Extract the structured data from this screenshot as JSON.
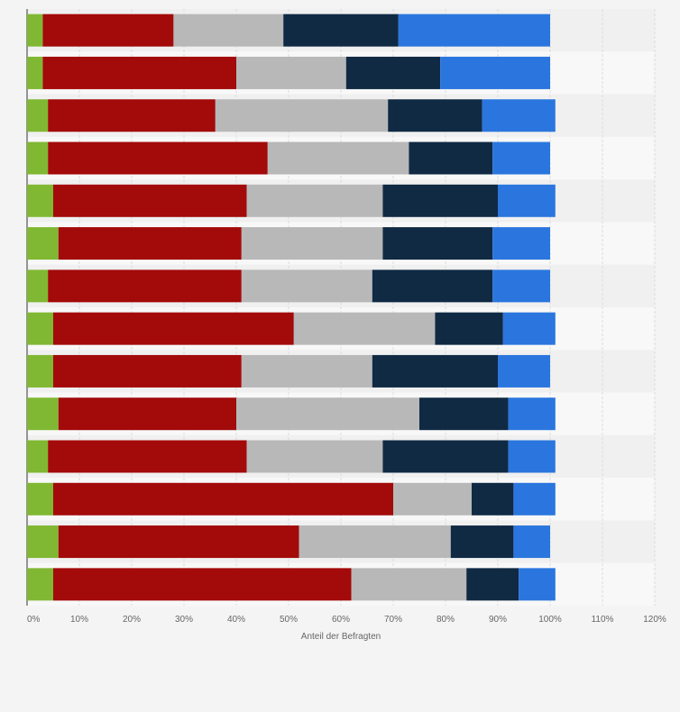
{
  "chart_data": {
    "type": "bar",
    "orientation": "horizontal",
    "stacked": true,
    "title": "",
    "xlabel": "Anteil der Befragten",
    "ylabel": "",
    "xlim": [
      0,
      120
    ],
    "x_ticks": [
      0,
      10,
      20,
      30,
      40,
      50,
      60,
      70,
      80,
      90,
      100,
      110,
      120
    ],
    "x_tick_labels": [
      "0%",
      "10%",
      "20%",
      "30%",
      "40%",
      "50%",
      "60%",
      "70%",
      "80%",
      "90%",
      "100%",
      "110%",
      "120%"
    ],
    "grid": true,
    "legend": "none",
    "categories": [
      "",
      "",
      "",
      "",
      "",
      "",
      "",
      "",
      "",
      "",
      "",
      "",
      "",
      ""
    ],
    "series": [
      {
        "color": "#80b833",
        "values": [
          3,
          3,
          4,
          4,
          5,
          6,
          4,
          5,
          5,
          6,
          4,
          5,
          6,
          5
        ]
      },
      {
        "color": "#a30a0a",
        "values": [
          25,
          37,
          32,
          42,
          37,
          35,
          37,
          46,
          36,
          34,
          38,
          65,
          46,
          57
        ]
      },
      {
        "color": "#b8b8b8",
        "values": [
          21,
          21,
          33,
          27,
          26,
          27,
          25,
          27,
          25,
          35,
          26,
          15,
          29,
          22
        ]
      },
      {
        "color": "#102a44",
        "values": [
          22,
          18,
          18,
          16,
          22,
          21,
          23,
          13,
          24,
          17,
          24,
          8,
          12,
          10
        ]
      },
      {
        "color": "#2a76de",
        "values": [
          29,
          21,
          14,
          11,
          11,
          11,
          11,
          10,
          10,
          9,
          9,
          8,
          7,
          7
        ]
      }
    ]
  }
}
